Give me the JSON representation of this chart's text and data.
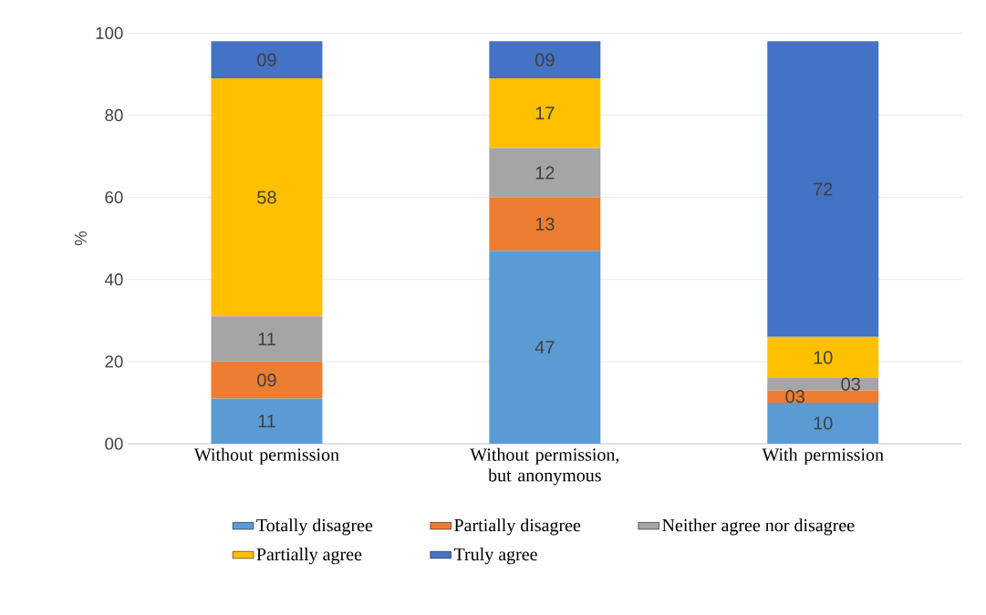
{
  "chart_data": {
    "type": "bar",
    "stacked": true,
    "categories": [
      "Without permission",
      "Without permission, but anonymous",
      "With permission"
    ],
    "ylabel": "%",
    "ylim": [
      0,
      100
    ],
    "yticks": [
      {
        "value": 0,
        "label": "00"
      },
      20,
      40,
      60,
      80,
      100
    ],
    "grid": "y",
    "legend": "bottom",
    "series": [
      {
        "name": "Totally disagree",
        "color": "#5b9bd5",
        "values": [
          11,
          47,
          10
        ],
        "value_labels": [
          "11",
          "47",
          "10"
        ]
      },
      {
        "name": "Partially disagree",
        "color": "#ed7d31",
        "values": [
          9,
          13,
          3
        ],
        "value_labels": [
          "09",
          "13",
          "03"
        ]
      },
      {
        "name": "Neither agree nor disagree",
        "color": "#a5a5a5",
        "values": [
          11,
          12,
          3
        ],
        "value_labels": [
          "11",
          "12",
          "03"
        ]
      },
      {
        "name": "Partially agree",
        "color": "#ffc000",
        "values": [
          58,
          17,
          10
        ],
        "value_labels": [
          "58",
          "17",
          "10"
        ]
      },
      {
        "name": "Truly agree",
        "color": "#4472c4",
        "values": [
          9,
          9,
          72
        ],
        "value_labels": [
          "09",
          "09",
          "72"
        ]
      }
    ]
  }
}
